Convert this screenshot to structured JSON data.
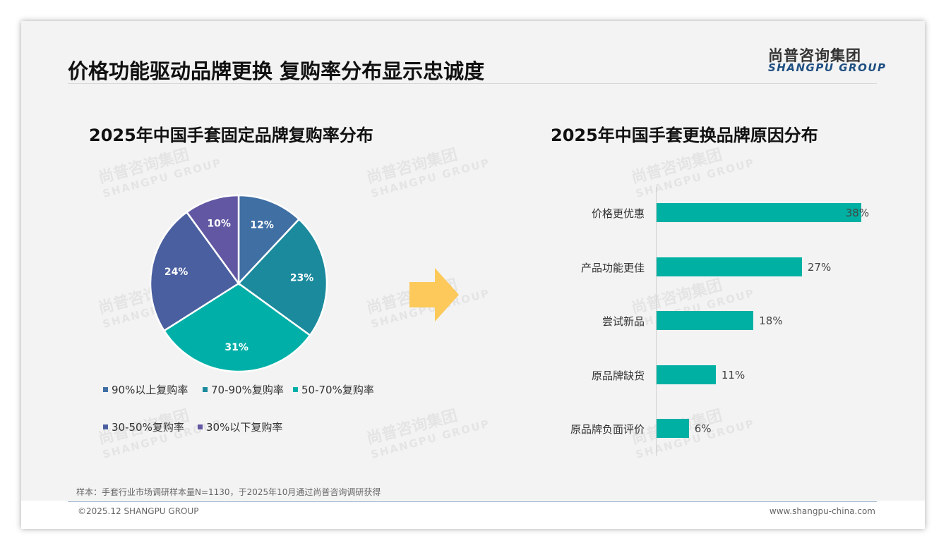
{
  "title": "价格功能驱动品牌更换 复购率分布显示忠诚度",
  "logo": {
    "cn": "尚普咨询集团",
    "en": "SHANGPU GROUP"
  },
  "note": "样本：手套行业市场调研样本量N=1130，于2025年10月通过尚普咨询调研获得",
  "footer": {
    "left": "©2025.12 SHANGPU GROUP",
    "right": "www.shangpu-china.com"
  },
  "chart_data": [
    {
      "type": "pie",
      "title": "2025年中国手套固定品牌复购率分布",
      "categories": [
        "90%以上复购率",
        "70-90%复购率",
        "50-70%复购率",
        "30-50%复购率",
        "30%以下复购率"
      ],
      "values": [
        12,
        23,
        31,
        24,
        10
      ],
      "labels": [
        "12%",
        "23%",
        "31%",
        "24%",
        "10%"
      ],
      "colors": [
        "#3f6fa3",
        "#1a8a9c",
        "#00b0a8",
        "#4a5f9f",
        "#6157a2"
      ],
      "legend": "bottom"
    },
    {
      "type": "bar",
      "orientation": "horizontal",
      "title": "2025年中国手套更换品牌原因分布",
      "categories": [
        "价格更优惠",
        "产品功能更佳",
        "尝试新品",
        "原品牌缺货",
        "原品牌负面评价"
      ],
      "values": [
        38,
        27,
        18,
        11,
        6
      ],
      "labels": [
        "38%",
        "27%",
        "18%",
        "11%",
        "6%"
      ],
      "color": "#00b0a3",
      "xlim": [
        0,
        40
      ]
    }
  ]
}
